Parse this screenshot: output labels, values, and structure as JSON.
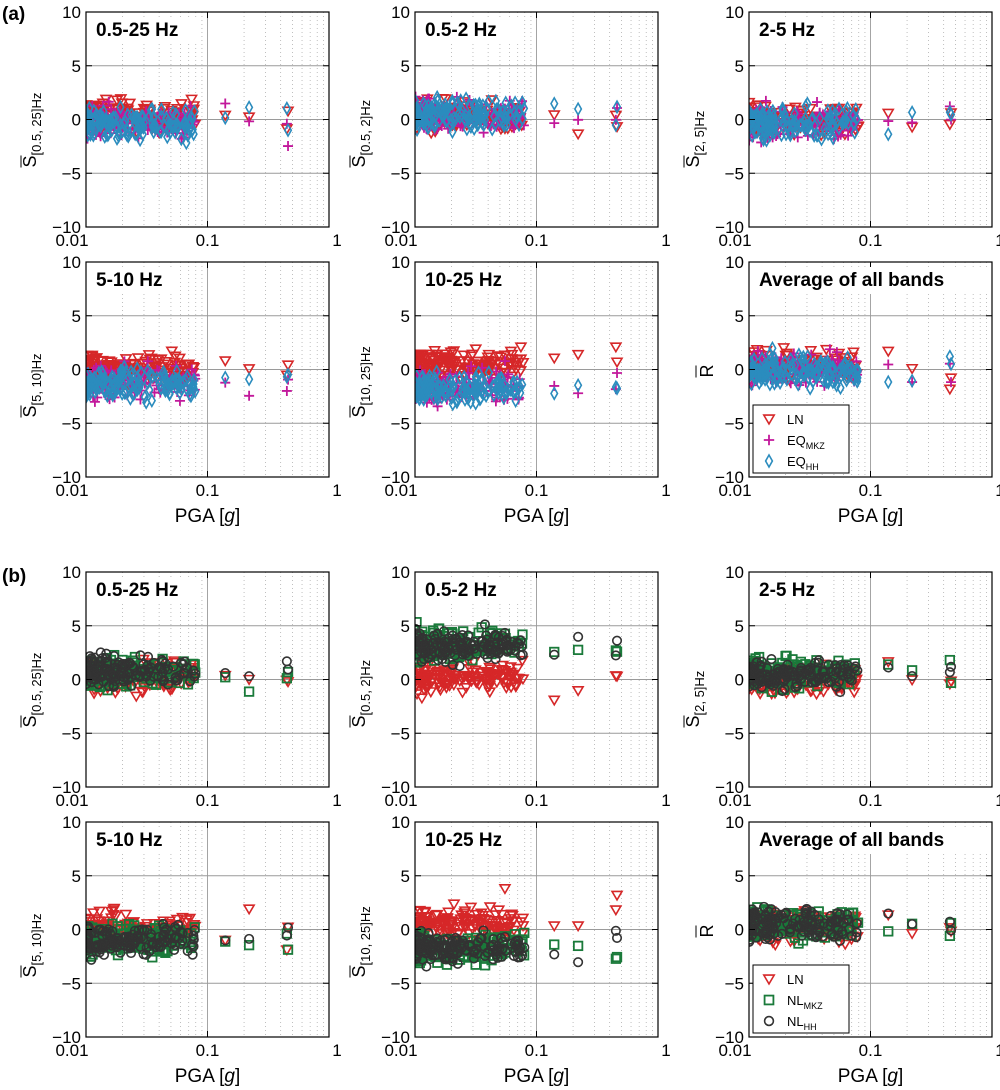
{
  "figure": {
    "parts": [
      {
        "label": "(a)",
        "legend": [
          {
            "label": "LN",
            "sub": "",
            "marker": "triangle",
            "color": "#d62728"
          },
          {
            "label": "EQ",
            "sub": "MKZ",
            "marker": "plus",
            "color": "#c2189b"
          },
          {
            "label": "EQ",
            "sub": "HH",
            "marker": "diamond",
            "color": "#2b8cbe"
          }
        ]
      },
      {
        "label": "(b)",
        "legend": [
          {
            "label": "LN",
            "sub": "",
            "marker": "triangle",
            "color": "#d62728"
          },
          {
            "label": "NL",
            "sub": "MKZ",
            "marker": "square",
            "color": "#1a7a3a"
          },
          {
            "label": "NL",
            "sub": "HH",
            "marker": "circle",
            "color": "#333333"
          }
        ]
      }
    ],
    "xlabel_main": "PGA [",
    "xlabel_var": "g",
    "xlabel_end": "]"
  },
  "chart_data": {
    "type": "scatter",
    "xscale": "log",
    "xlim": [
      0.01,
      1
    ],
    "ylim": [
      -10,
      10
    ],
    "xticks": [
      "0.01",
      "0.1",
      "1"
    ],
    "yticks": [
      "10",
      "5",
      "0",
      "−5",
      "−10"
    ],
    "grid": true,
    "panels": [
      {
        "title": "0.5-25 Hz",
        "ylabel_sub": "[0.5, 25]Hz",
        "ylabel_main": "S",
        "means": {
          "LN": 0.3,
          "A2": -0.2,
          "A3": -0.4,
          "B2": 0.6,
          "B3": 0.8
        }
      },
      {
        "title": "0.5-2 Hz",
        "ylabel_sub": "[0.5, 2]Hz",
        "ylabel_main": "S",
        "means": {
          "LN": 0.2,
          "A2": 0.4,
          "A3": 0.5,
          "B2": 3.3,
          "B3": 3.0
        }
      },
      {
        "title": "2-5 Hz",
        "ylabel_sub": "[2, 5]Hz",
        "ylabel_main": "S",
        "means": {
          "LN": 0.0,
          "A2": -0.3,
          "A3": -0.2,
          "B2": 0.6,
          "B3": 0.5
        }
      },
      {
        "title": "5-10 Hz",
        "ylabel_sub": "[5, 10]Hz",
        "ylabel_main": "S",
        "means": {
          "LN": 0.0,
          "A2": -1.2,
          "A3": -1.3,
          "B2": -0.9,
          "B3": -1.0
        }
      },
      {
        "title": "10-25 Hz",
        "ylabel_sub": "[10, 25]Hz",
        "ylabel_main": "S",
        "means": {
          "LN": 0.5,
          "A2": -1.6,
          "A3": -1.7,
          "B2": -1.8,
          "B3": -1.7
        }
      },
      {
        "title": "Average of all bands",
        "ylabel_sub": "",
        "ylabel_main": "R",
        "means": {
          "LN": 0.3,
          "A2": 0.0,
          "A3": -0.1,
          "B2": 0.5,
          "B3": 0.5
        }
      }
    ],
    "tail_points": {
      "x": [
        0.055,
        0.14,
        0.22,
        0.45,
        0.46
      ],
      "note_series": [
        "LN",
        "A2",
        "A3",
        "B2",
        "B3"
      ]
    }
  }
}
